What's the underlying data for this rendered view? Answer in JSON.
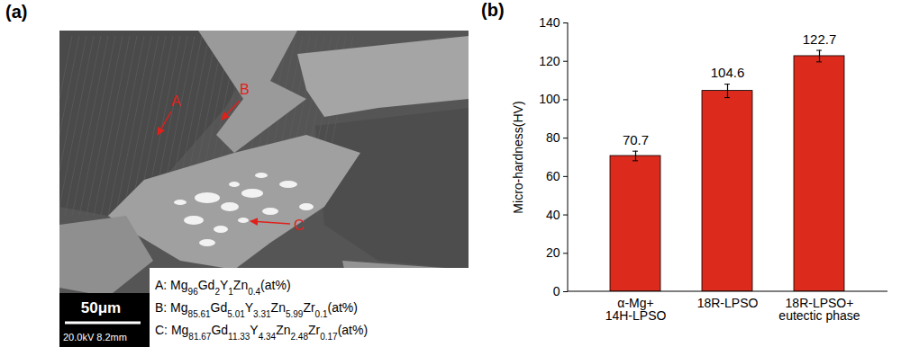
{
  "image_panel": {
    "label": "(a)",
    "markers": [
      "A",
      "B",
      "C"
    ],
    "compositions": [
      "A: Mg96Gd2Y1Zn0.4(at%)",
      "B: Mg85.61Gd5.01Y3.31Zn5.99Zr0.1(at%)",
      "C: Mg81.67Gd11.33Y4.34Zn2.48Zr0.17(at%)"
    ],
    "scale_bar": "50μm",
    "info": "20.0kV 8.2mm"
  },
  "chart_data": {
    "type": "bar",
    "title": "(b)",
    "categories": [
      "α-Mg+\n14H-LPSO",
      "18R-LPSO",
      "18R-LPSO+\neutectic phase"
    ],
    "values": [
      70.7,
      104.6,
      122.7
    ],
    "errors": [
      2.5,
      3.5,
      3.0
    ],
    "color": "#dc2b1c",
    "ylabel": "Micro-hardness(HV)",
    "ylim": [
      0,
      140
    ],
    "yticks": [
      0,
      20,
      40,
      60,
      80,
      100,
      120,
      140
    ],
    "data_labels": true
  }
}
